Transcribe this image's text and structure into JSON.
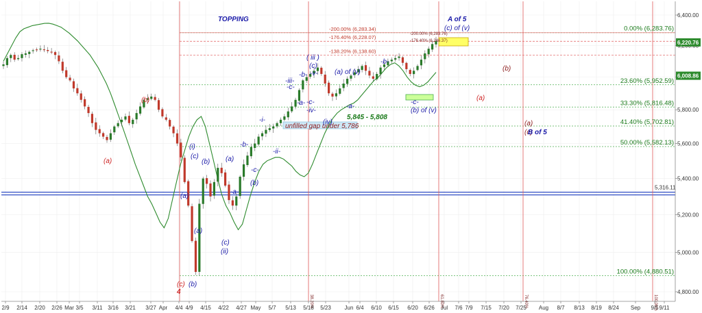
{
  "chart_data": {
    "type": "line",
    "title": "TOPPING",
    "price_axis": {
      "ticks": [
        "6,400.00",
        "6,200.00",
        "6,000.00",
        "5,800.00",
        "5,600.00",
        "5,400.00",
        "5,200.00",
        "5,000.00",
        "4,800.00"
      ],
      "range": [
        4770,
        6480
      ],
      "scale": "log"
    },
    "date_axis": {
      "ticks": [
        "2/9",
        "2/14",
        "2/20",
        "2/26",
        "Mar",
        "3/5",
        "3/11",
        "3/16",
        "3/21",
        "3/27",
        "Apr",
        "4/4",
        "4/9",
        "4/15",
        "4/22",
        "4/27",
        "May",
        "5/7",
        "5/13",
        "5/18",
        "5/23",
        "Jun",
        "6/4",
        "6/10",
        "6/15",
        "6/20",
        "6/26",
        "Jul",
        "7/6",
        "7/9",
        "7/15",
        "7/20",
        "7/25",
        "Aug",
        "8/7",
        "8/13",
        "8/19",
        "8/24",
        "Sep",
        "9/5",
        "9/11"
      ]
    },
    "series": [
      {
        "name": "",
        "color": "#333333",
        "values": [
          6080,
          6120,
          6140,
          6110,
          6120,
          6145,
          6150,
          6160,
          6170,
          6175,
          6180,
          6175,
          6165,
          6160,
          6140,
          6100,
          6040,
          6000,
          5980,
          5930,
          5900,
          5860,
          5820,
          5780,
          5720,
          5680,
          5660,
          5640,
          5620,
          5660,
          5700,
          5720,
          5740,
          5760,
          5720,
          5740,
          5780,
          5820,
          5860,
          5870,
          5880,
          5860,
          5800,
          5760,
          5740,
          5700,
          5660,
          5600,
          5520,
          5380,
          5250,
          5060,
          4900,
          5260,
          5400,
          5370,
          5300,
          5380,
          5460,
          5430,
          5360,
          5280,
          5250,
          5300,
          5410,
          5480,
          5530,
          5580,
          5600,
          5640,
          5660,
          5680,
          5690,
          5700,
          5720,
          5740,
          5760,
          5790,
          5820,
          5860,
          5920,
          5980,
          6000,
          6020,
          6040,
          6060,
          6020,
          5960,
          5900,
          5880,
          5900,
          5930,
          5960,
          5990,
          6010,
          6030,
          6050,
          6070,
          6040,
          6010,
          5990,
          6020,
          6060,
          6080,
          6100,
          6110,
          6120,
          6130,
          6090,
          6050,
          6020,
          6040,
          6070,
          6110,
          6150,
          6180,
          6210,
          6230
        ]
      },
      {
        "name": "",
        "color": "#2e8b2e",
        "values": [
          6100,
          6150,
          6200,
          6250,
          6290,
          6310,
          6320,
          6330,
          6335,
          6340,
          6345,
          6346,
          6340,
          6330,
          6320,
          6300,
          6280,
          6255,
          6230,
          6200,
          6170,
          6140,
          6100,
          6060,
          6010,
          5960,
          5900,
          5830,
          5760,
          5690,
          5620,
          5550,
          5480,
          5420,
          5360,
          5300,
          5260,
          5210,
          5160,
          5130,
          5180,
          5280,
          5380,
          5480,
          5560,
          5640,
          5700,
          5740,
          5760,
          5700,
          5600,
          5500,
          5400,
          5310,
          5250,
          5210,
          5160,
          5120,
          5150,
          5230,
          5310,
          5380,
          5440,
          5480,
          5500,
          5510,
          5520,
          5520,
          5510,
          5490,
          5470,
          5440,
          5420,
          5410,
          5430,
          5480,
          5540,
          5600,
          5660,
          5710,
          5750,
          5780,
          5800,
          5815,
          5830,
          5840,
          5860,
          5890,
          5920,
          5950,
          5980,
          6000,
          6030,
          6060,
          6080,
          6090,
          6070,
          6040,
          6000,
          5970,
          5950,
          5940,
          5950,
          5970,
          6000,
          6030
        ]
      }
    ],
    "fib_levels": [
      {
        "label": "0.00% (6,283.76)",
        "value": 6283.76
      },
      {
        "label": "23.60% (5,952.59)",
        "value": 5952.59
      },
      {
        "label": "33.30% (5,816.48)",
        "value": 5816.48
      },
      {
        "label": "41.40% (5,702.81)",
        "value": 5702.81
      },
      {
        "label": "50.00% (5,582.13)",
        "value": 5582.13
      },
      {
        "label": "100.00% (4,880.51)",
        "value": 4880.51
      }
    ],
    "projection_levels": [
      {
        "label": "-200.00% (6,283.34)",
        "value": 6283.34
      },
      {
        "label": "-176.40% (6,228.07)",
        "value": 6228.07
      },
      {
        "label": "-138.20% (6,138.60)",
        "value": 6138.6
      }
    ],
    "small_projection_labels": [
      "-200.00% (6,283.76)",
      "-176.40% (6,246.37)"
    ],
    "price_tags": [
      {
        "label": "6,220.76",
        "value": 6220.76
      },
      {
        "label": "6,008.86",
        "value": 6008.86
      }
    ],
    "support_line": {
      "label": "5,316.11",
      "value": 5316.11
    },
    "vertical_marker_labels": [
      "38.20%",
      "61.80%",
      "76.40%",
      "100.00%",
      "138.20%"
    ],
    "annotations": [
      {
        "text": "A of 5",
        "color": "#1a1aa8"
      },
      {
        "text": "(c) of (v)",
        "color": "#1a1aa8"
      },
      {
        "text": "( iii )",
        "color": "#1a1aa8"
      },
      {
        "text": "(c)",
        "color": "#1a1aa8"
      },
      {
        "text": "-iii-",
        "color": "#1a1aa8"
      },
      {
        "text": "-b-",
        "color": "#1a1aa8"
      },
      {
        "text": "-v-",
        "color": "#1a1aa8"
      },
      {
        "text": "-c-",
        "color": "#1a1aa8"
      },
      {
        "text": "-a-",
        "color": "#1a1aa8"
      },
      {
        "text": "-c-",
        "color": "#1a1aa8"
      },
      {
        "text": "-iv-",
        "color": "#1a1aa8"
      },
      {
        "text": "(a) of (v)",
        "color": "#1a1aa8"
      },
      {
        "text": "-b-",
        "color": "#1a1aa8"
      },
      {
        "text": "-a-",
        "color": "#1a1aa8"
      },
      {
        "text": "-c-",
        "color": "#1a1aa8"
      },
      {
        "text": "(b) of (v)",
        "color": "#1a1aa8"
      },
      {
        "text": "(iv)",
        "color": "#1a1aa8"
      },
      {
        "text": "-i-",
        "color": "#1a1aa8"
      },
      {
        "text": "-ii-",
        "color": "#1a1aa8"
      },
      {
        "text": "-b-",
        "color": "#1a1aa8"
      },
      {
        "text": "(a)",
        "color": "#1a1aa8"
      },
      {
        "text": "-c-",
        "color": "#1a1aa8"
      },
      {
        "text": "(b)",
        "color": "#1a1aa8"
      },
      {
        "text": "-a-",
        "color": "#1a1aa8"
      },
      {
        "text": "(i)",
        "color": "#1a1aa8"
      },
      {
        "text": "(c)",
        "color": "#1a1aa8"
      },
      {
        "text": "(b)",
        "color": "#1a1aa8"
      },
      {
        "text": "(a)",
        "color": "#1a1aa8"
      },
      {
        "text": "(a)",
        "color": "#1a1aa8"
      },
      {
        "text": "(c)",
        "color": "#1a1aa8"
      },
      {
        "text": "(ii)",
        "color": "#1a1aa8"
      },
      {
        "text": "(b)",
        "color": "#1a1aa8"
      },
      {
        "text": "(a)",
        "color": "#cc1f1f"
      },
      {
        "text": "(b)",
        "color": "#cc1f1f"
      },
      {
        "text": "(a)",
        "color": "#cc1f1f"
      },
      {
        "text": "(c)",
        "color": "#cc1f1f"
      },
      {
        "text": "4",
        "color": "#cc1f1f"
      },
      {
        "text": "(b)",
        "color": "#8b1a1a"
      },
      {
        "text": "(a)",
        "color": "#8b1a1a"
      },
      {
        "text": "(c)",
        "color": "#8b1a1a"
      },
      {
        "text": "B of 5",
        "color": "#1a1aa8"
      },
      {
        "text": "5,845 - 5,808",
        "color": "#1a7a1a"
      },
      {
        "text": "unfilled gap under 5,786",
        "color": "#8b1a1a"
      }
    ],
    "colors": {
      "price": "#333333",
      "up": "#2a7a2a",
      "down": "#c0392b",
      "green_line": "#2e8b2e",
      "fib": "#1a7a1a",
      "support": "#1f3fbf"
    }
  }
}
